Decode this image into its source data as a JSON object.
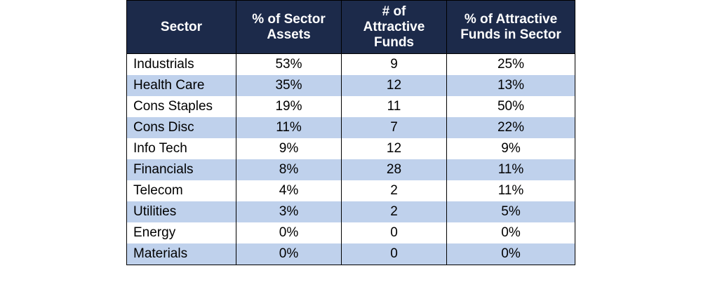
{
  "table": {
    "headers": {
      "sector": "Sector",
      "pct_assets": "% of Sector Assets",
      "num_funds": "# of Attractive Funds",
      "pct_attractive": "% of Attractive Funds in Sector"
    },
    "header_lines": {
      "pct_assets": [
        "% of Sector",
        "Assets"
      ],
      "num_funds": [
        "# of",
        "Attractive",
        "Funds"
      ],
      "pct_attractive": [
        "% of Attractive",
        "Funds in Sector"
      ]
    },
    "rows": [
      {
        "sector": "Industrials",
        "pct_assets": "53%",
        "num_funds": "9",
        "pct_attractive": "25%"
      },
      {
        "sector": "Health Care",
        "pct_assets": "35%",
        "num_funds": "12",
        "pct_attractive": "13%"
      },
      {
        "sector": "Cons Staples",
        "pct_assets": "19%",
        "num_funds": "11",
        "pct_attractive": "50%"
      },
      {
        "sector": "Cons Disc",
        "pct_assets": "11%",
        "num_funds": "7",
        "pct_attractive": "22%"
      },
      {
        "sector": "Info Tech",
        "pct_assets": "9%",
        "num_funds": "12",
        "pct_attractive": "9%"
      },
      {
        "sector": "Financials",
        "pct_assets": "8%",
        "num_funds": "28",
        "pct_attractive": "11%"
      },
      {
        "sector": "Telecom",
        "pct_assets": "4%",
        "num_funds": "2",
        "pct_attractive": "11%"
      },
      {
        "sector": "Utilities",
        "pct_assets": "3%",
        "num_funds": "2",
        "pct_attractive": "5%"
      },
      {
        "sector": "Energy",
        "pct_assets": "0%",
        "num_funds": "0",
        "pct_attractive": "0%"
      },
      {
        "sector": "Materials",
        "pct_assets": "0%",
        "num_funds": "0",
        "pct_attractive": "0%"
      }
    ],
    "colors": {
      "header_bg": "#1c2a4a",
      "header_text": "#ffffff",
      "stripe": "#bfd1ec",
      "row_bg": "#ffffff"
    }
  }
}
